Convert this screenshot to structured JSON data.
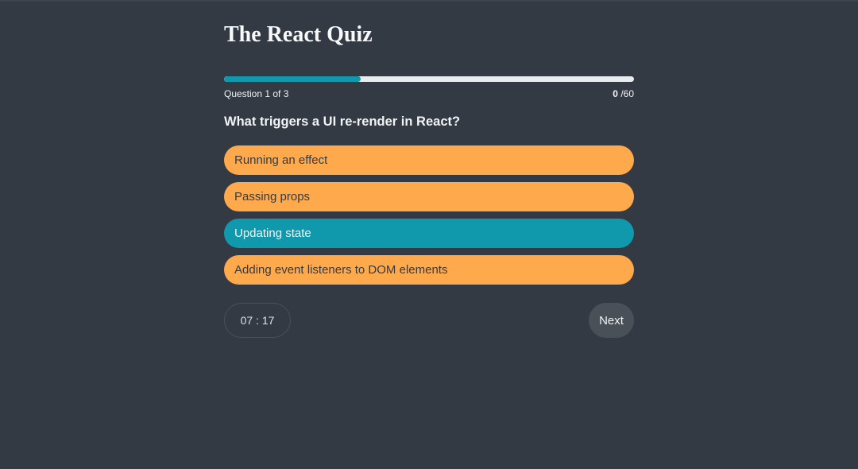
{
  "header": {
    "title": "The React Quiz"
  },
  "progress": {
    "current": 1,
    "total": 3,
    "fraction": 0.3333,
    "label": "Question 1 of 3",
    "points": "0",
    "max_points": " /60"
  },
  "question": {
    "text": "What triggers a UI re-render in React?",
    "options": [
      {
        "label": "Running an effect",
        "selected": false
      },
      {
        "label": "Passing props",
        "selected": false
      },
      {
        "label": "Updating state",
        "selected": true
      },
      {
        "label": "Adding event listeners to DOM elements",
        "selected": false
      }
    ]
  },
  "footer": {
    "timer": "07 : 17",
    "next_label": "Next"
  },
  "colors": {
    "background": "#343a43",
    "accent": "#1098ad",
    "option": "#ffa94d"
  }
}
